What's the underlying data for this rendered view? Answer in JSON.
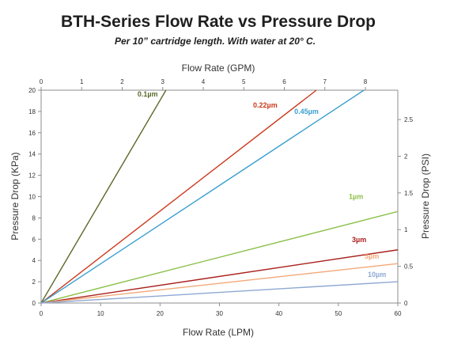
{
  "chart_data": {
    "type": "line",
    "title": "BTH-Series Flow Rate vs Pressure Drop",
    "subtitle": "Per 10” cartridge length. With water at 20° C.",
    "xlabel": "Flow Rate (LPM)",
    "ylabel": "Pressure Drop (KPa)",
    "x2label": "Flow Rate (GPM)",
    "y2label": "Pressure Drop (PSI)",
    "xlim": [
      0,
      60
    ],
    "ylim": [
      0,
      20
    ],
    "x2lim": [
      0,
      8.8
    ],
    "y2lim": [
      0,
      2.9
    ],
    "xticks": [
      "0",
      "10",
      "20",
      "30",
      "40",
      "50",
      "60"
    ],
    "yticks": [
      "0",
      "2",
      "4",
      "6",
      "8",
      "10",
      "12",
      "14",
      "16",
      "18",
      "20"
    ],
    "x2ticks": [
      "0",
      "1",
      "2",
      "3",
      "4",
      "5",
      "6",
      "7",
      "8"
    ],
    "y2ticks": [
      "0",
      "0.5",
      "1",
      "1.5",
      "2",
      "2.5"
    ],
    "grid": false,
    "legend": "none",
    "series": [
      {
        "name": "0.1µm",
        "color": "#5a6a2a",
        "x": [
          0,
          21.0
        ],
        "y": [
          0,
          20
        ]
      },
      {
        "name": "0.22µm",
        "color": "#cc3a1c",
        "x": [
          0,
          46.3
        ],
        "y": [
          0,
          20
        ]
      },
      {
        "name": "0.45µm",
        "color": "#3a9fd0",
        "x": [
          0,
          54.3
        ],
        "y": [
          0,
          20
        ]
      },
      {
        "name": "1µm",
        "color": "#8cc04a",
        "x": [
          0,
          60
        ],
        "y": [
          0,
          8.6
        ]
      },
      {
        "name": "3µm",
        "color": "#a8201c",
        "x": [
          0,
          60
        ],
        "y": [
          0,
          5.0
        ]
      },
      {
        "name": "5µm",
        "color": "#f2a878",
        "x": [
          0,
          60
        ],
        "y": [
          0,
          3.7
        ]
      },
      {
        "name": "10µm",
        "color": "#8ea8d2",
        "x": [
          0,
          60
        ],
        "y": [
          0,
          2.0
        ]
      }
    ]
  }
}
